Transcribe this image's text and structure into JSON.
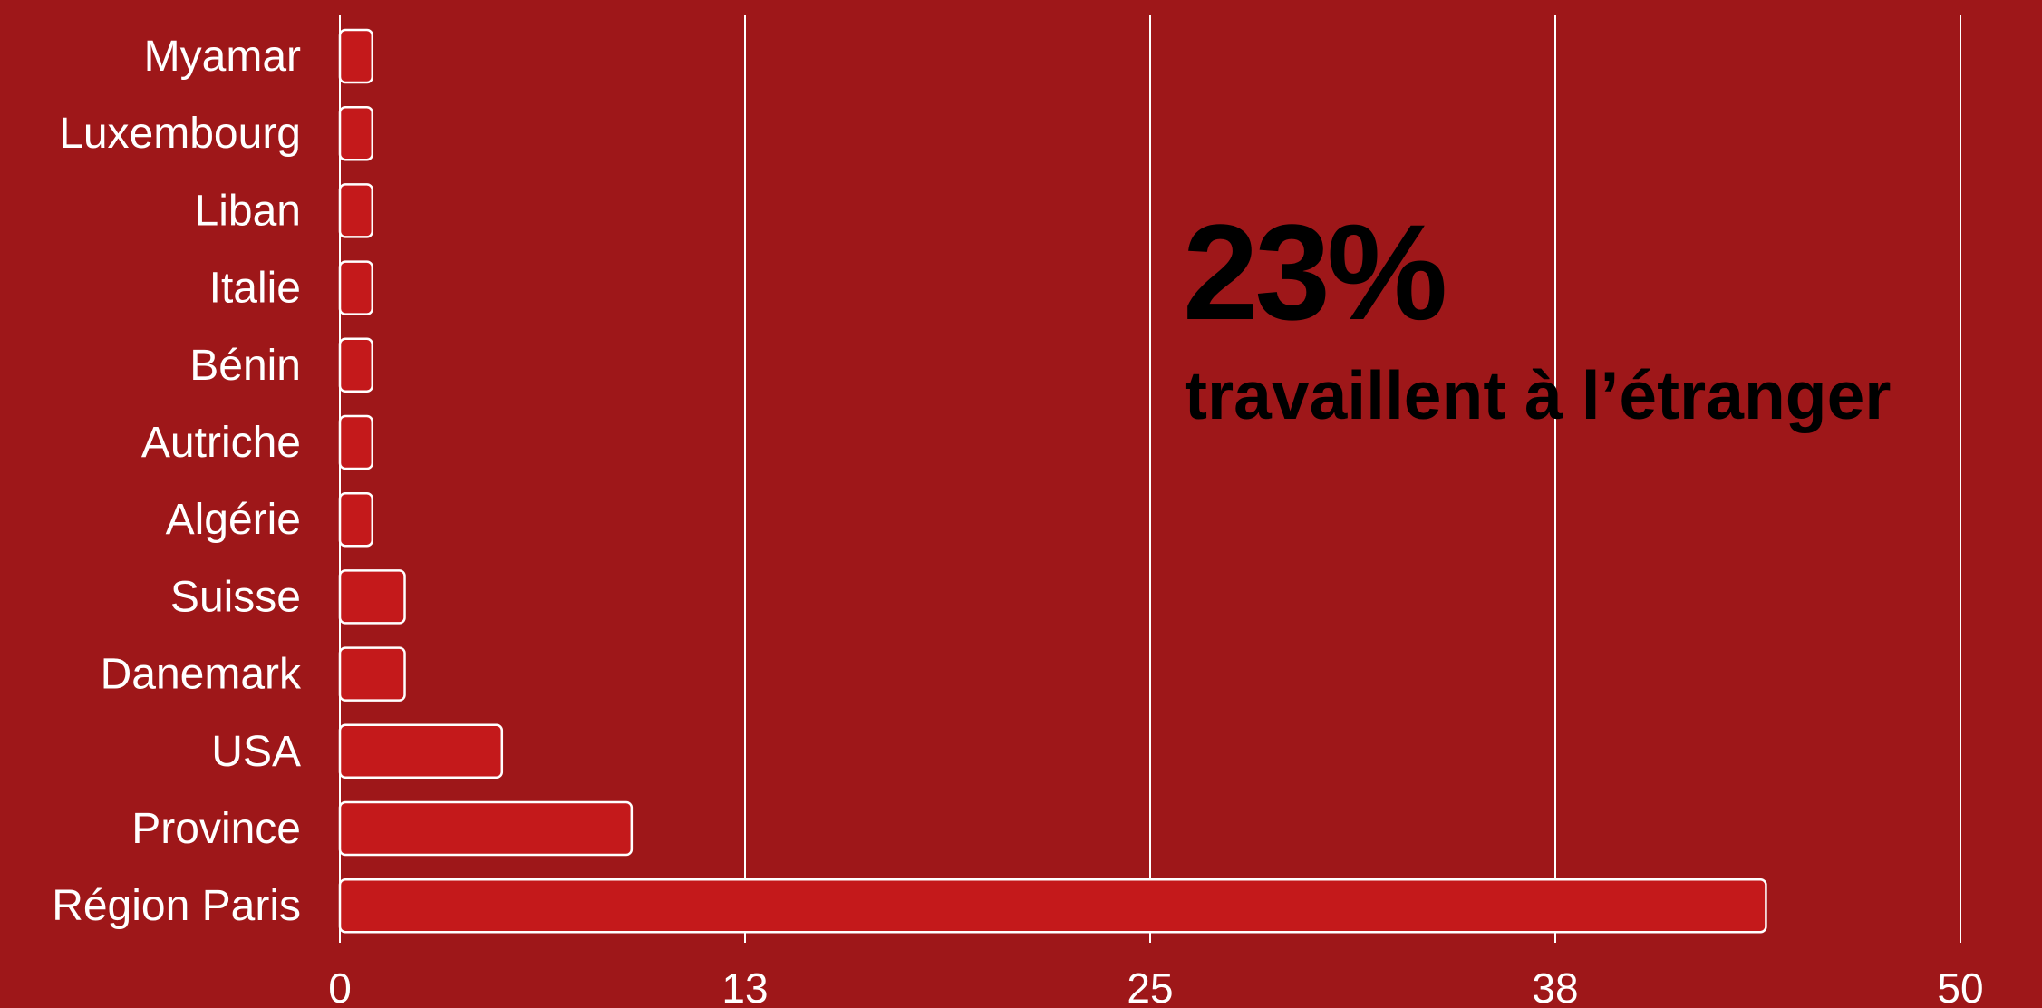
{
  "chart_data": {
    "type": "bar",
    "orientation": "horizontal",
    "categories": [
      "Myamar",
      "Luxembourg",
      "Liban",
      "Italie",
      "Bénin",
      "Autriche",
      "Algérie",
      "Suisse",
      "Danemark",
      "USA",
      "Province",
      "Région Paris"
    ],
    "values": [
      1,
      1,
      1,
      1,
      1,
      1,
      1,
      2,
      2,
      5,
      9,
      44
    ],
    "xlim": [
      0,
      50
    ],
    "xticks": [
      "0",
      "13",
      "25",
      "38",
      "50"
    ],
    "xtick_values": [
      0,
      12.5,
      25,
      37.5,
      50
    ],
    "grid": true,
    "title": "",
    "xlabel": "",
    "ylabel": "",
    "annotation": {
      "value": "23%",
      "text": "travaillent à l’étranger"
    },
    "colors": {
      "background": "#9e1719",
      "bar_fill": "#c4191b",
      "bar_stroke": "#ffffff",
      "grid": "#ffffff",
      "text": "#ffffff",
      "annotation": "#000000"
    }
  }
}
